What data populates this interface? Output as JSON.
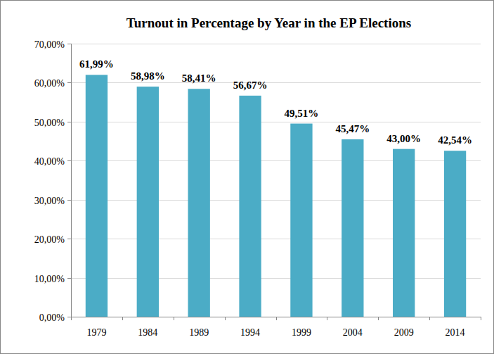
{
  "chart_data": {
    "type": "bar",
    "title": "Turnout in Percentage by Year in the EP Elections",
    "categories": [
      "1979",
      "1984",
      "1989",
      "1994",
      "1999",
      "2004",
      "2009",
      "2014"
    ],
    "values": [
      61.99,
      58.98,
      58.41,
      56.67,
      49.51,
      45.47,
      43.0,
      42.54
    ],
    "value_labels": [
      "61,99%",
      "58,98%",
      "58,41%",
      "56,67%",
      "49,51%",
      "45,47%",
      "43,00%",
      "42,54%"
    ],
    "color": "#4bacc6",
    "ylim": [
      0,
      70
    ],
    "yticks": [
      {
        "value": 0,
        "label": "0,00%"
      },
      {
        "value": 10,
        "label": "10,00%"
      },
      {
        "value": 20,
        "label": "20,00%"
      },
      {
        "value": 30,
        "label": "30,00%"
      },
      {
        "value": 40,
        "label": "40,00%"
      },
      {
        "value": 50,
        "label": "50,00%"
      },
      {
        "value": 60,
        "label": "60,00%"
      },
      {
        "value": 70,
        "label": "70,00%"
      }
    ],
    "grid": true,
    "data_labels": true
  }
}
